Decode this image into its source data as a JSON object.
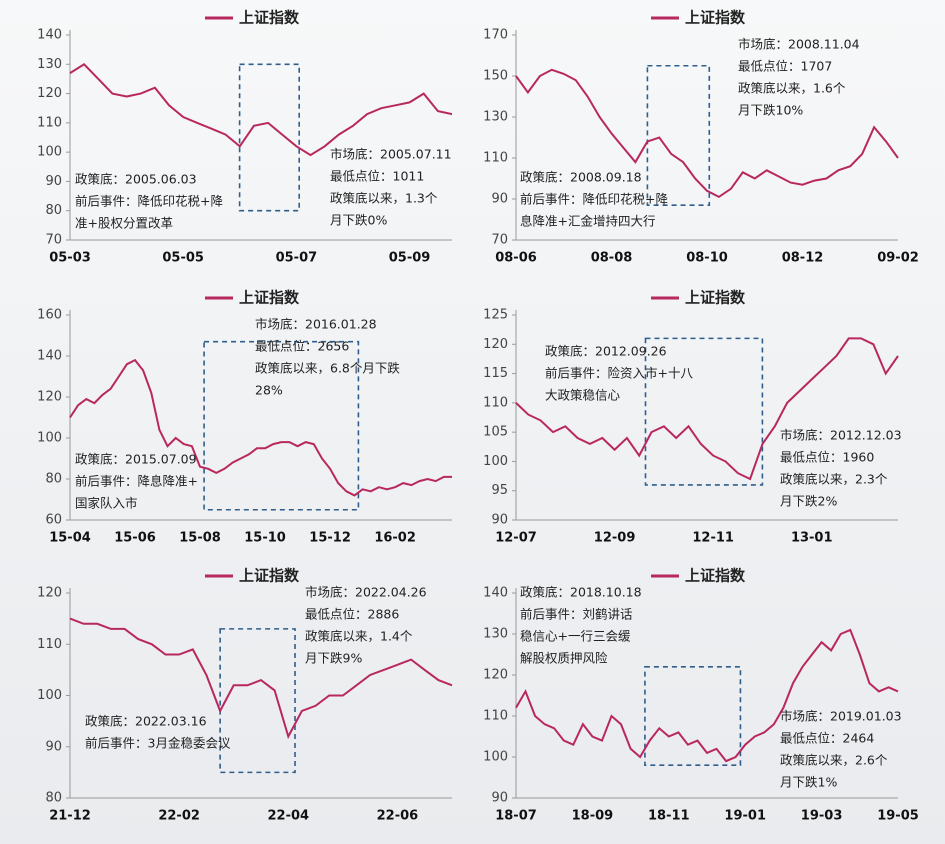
{
  "chart_data": [
    {
      "type": "line",
      "categories": [
        "05-03",
        null,
        null,
        null,
        null,
        null,
        null,
        null,
        "05-05",
        null,
        null,
        null,
        null,
        null,
        null,
        null,
        "05-07",
        null,
        null,
        null,
        null,
        null,
        null,
        null,
        "05-09",
        null,
        null,
        null
      ],
      "series": [
        {
          "name": "上证指数",
          "color": "#b8285e",
          "values": [
            127,
            130,
            125,
            120,
            119,
            120,
            122,
            116,
            112,
            110,
            108,
            106,
            102,
            109,
            110,
            106,
            102,
            99,
            102,
            106,
            109,
            113,
            115,
            116,
            117,
            120,
            114,
            113
          ]
        }
      ],
      "ylim": [
        70,
        140
      ],
      "yticks": [
        70,
        80,
        90,
        100,
        110,
        120,
        130,
        140
      ],
      "annotations": [
        [
          "政策底：2005.06.03",
          "前后事件：降低印花税+降",
          "准+股权分置改革"
        ],
        [
          "市场底：2005.07.11",
          "最低点位：1011",
          "政策底以来，1.3个",
          "月下跌0%"
        ]
      ]
    },
    {
      "type": "line",
      "categories": [
        "08-06",
        null,
        null,
        null,
        null,
        null,
        null,
        null,
        "08-08",
        null,
        null,
        null,
        null,
        null,
        null,
        null,
        "08-10",
        null,
        null,
        null,
        null,
        null,
        null,
        null,
        "08-12",
        null,
        null,
        null,
        null,
        null,
        null,
        null,
        "09-02"
      ],
      "series": [
        {
          "name": "上证指数",
          "color": "#b8285e",
          "values": [
            150,
            142,
            150,
            153,
            151,
            148,
            140,
            130,
            122,
            115,
            108,
            118,
            120,
            112,
            108,
            100,
            94,
            91,
            95,
            103,
            100,
            104,
            101,
            98,
            97,
            99,
            100,
            104,
            106,
            112,
            125,
            118,
            110
          ]
        }
      ],
      "ylim": [
        70,
        170
      ],
      "yticks": [
        70,
        90,
        110,
        130,
        150,
        170
      ],
      "annotations": [
        [
          "政策底：2008.09.18",
          "前后事件：降低印花税+降",
          "息降准+汇金增持四大行"
        ],
        [
          "市场底：2008.11.04",
          "最低点位：1707",
          "政策底以来，1.6个",
          "月下跌10%"
        ]
      ]
    },
    {
      "type": "line",
      "categories": [
        "15-04",
        null,
        null,
        null,
        null,
        null,
        null,
        null,
        "15-06",
        null,
        null,
        null,
        null,
        null,
        null,
        null,
        "15-08",
        null,
        null,
        null,
        null,
        null,
        null,
        null,
        "15-10",
        null,
        null,
        null,
        null,
        null,
        null,
        null,
        "15-12",
        null,
        null,
        null,
        null,
        null,
        null,
        null,
        "16-02",
        null,
        null,
        null,
        null,
        null,
        null,
        null
      ],
      "series": [
        {
          "name": "上证指数",
          "color": "#b8285e",
          "values": [
            110,
            116,
            119,
            117,
            121,
            124,
            130,
            136,
            138,
            133,
            122,
            104,
            96,
            100,
            97,
            96,
            86,
            85,
            83,
            85,
            88,
            90,
            92,
            95,
            95,
            97,
            98,
            98,
            96,
            98,
            97,
            90,
            85,
            78,
            74,
            72,
            75,
            74,
            76,
            75,
            76,
            78,
            77,
            79,
            80,
            79,
            81,
            81
          ]
        }
      ],
      "ylim": [
        60,
        160
      ],
      "yticks": [
        60,
        80,
        100,
        120,
        140,
        160
      ],
      "annotations": [
        [
          "政策底：2015.07.09",
          "前后事件：降息降准+",
          "国家队入市"
        ],
        [
          "市场底：2016.01.28",
          "最低点位：2656",
          "政策底以来，6.8个月下跌",
          "28%"
        ]
      ]
    },
    {
      "type": "line",
      "categories": [
        "12-07",
        null,
        null,
        null,
        null,
        null,
        null,
        null,
        "12-09",
        null,
        null,
        null,
        null,
        null,
        null,
        null,
        "12-11",
        null,
        null,
        null,
        null,
        null,
        null,
        null,
        "13-01",
        null,
        null,
        null,
        null,
        null,
        null,
        null
      ],
      "series": [
        {
          "name": "上证指数",
          "color": "#b8285e",
          "values": [
            110,
            108,
            107,
            105,
            106,
            104,
            103,
            104,
            102,
            104,
            101,
            105,
            106,
            104,
            106,
            103,
            101,
            100,
            98,
            97,
            103,
            106,
            110,
            112,
            114,
            116,
            118,
            121,
            121,
            120,
            115,
            118
          ]
        }
      ],
      "ylim": [
        90,
        125
      ],
      "yticks": [
        90,
        95,
        100,
        105,
        110,
        115,
        120,
        125
      ],
      "annotations": [
        [
          "政策底：2012.09.26",
          "前后事件：险资入市+十八",
          "大政策稳信心"
        ],
        [
          "市场底：2012.12.03",
          "最低点位：1960",
          "政策底以来，2.3个",
          "月下跌2%"
        ]
      ]
    },
    {
      "type": "line",
      "categories": [
        "21-12",
        null,
        null,
        null,
        null,
        null,
        null,
        null,
        "22-02",
        null,
        null,
        null,
        null,
        null,
        null,
        null,
        "22-04",
        null,
        null,
        null,
        null,
        null,
        null,
        null,
        "22-06",
        null,
        null,
        null,
        null
      ],
      "series": [
        {
          "name": "上证指数",
          "color": "#b8285e",
          "values": [
            115,
            114,
            114,
            113,
            113,
            111,
            110,
            108,
            108,
            109,
            104,
            97,
            102,
            102,
            103,
            101,
            92,
            97,
            98,
            100,
            100,
            102,
            104,
            105,
            106,
            107,
            105,
            103,
            102
          ]
        }
      ],
      "ylim": [
        80,
        120
      ],
      "yticks": [
        80,
        90,
        100,
        110,
        120
      ],
      "annotations": [
        [
          "政策底：2022.03.16",
          "前后事件：3月金稳委会议"
        ],
        [
          "市场底：2022.04.26",
          "最低点位：2886",
          "政策底以来，1.4个",
          "月下跌9%"
        ]
      ]
    },
    {
      "type": "line",
      "categories": [
        "18-07",
        null,
        null,
        null,
        null,
        null,
        null,
        null,
        "18-09",
        null,
        null,
        null,
        null,
        null,
        null,
        null,
        "18-11",
        null,
        null,
        null,
        null,
        null,
        null,
        null,
        "19-01",
        null,
        null,
        null,
        null,
        null,
        null,
        null,
        "19-03",
        null,
        null,
        null,
        null,
        null,
        null,
        null,
        "19-05"
      ],
      "series": [
        {
          "name": "上证指数",
          "color": "#b8285e",
          "values": [
            112,
            116,
            110,
            108,
            107,
            104,
            103,
            108,
            105,
            104,
            110,
            108,
            102,
            100,
            104,
            107,
            105,
            106,
            103,
            104,
            101,
            102,
            99,
            100,
            103,
            105,
            106,
            108,
            112,
            118,
            122,
            125,
            128,
            126,
            130,
            131,
            125,
            118,
            116,
            117,
            116
          ]
        }
      ],
      "ylim": [
        90,
        140
      ],
      "yticks": [
        90,
        100,
        110,
        120,
        130,
        140
      ],
      "annotations": [
        [
          "政策底：2018.10.18",
          "前后事件：刘鹤讲话",
          "稳信心+一行三会缓",
          "解股权质押风险"
        ],
        [
          "市场底：2019.01.03",
          "最低点位：2464",
          "政策底以来，2.6个",
          "月下跌1%"
        ]
      ]
    }
  ]
}
